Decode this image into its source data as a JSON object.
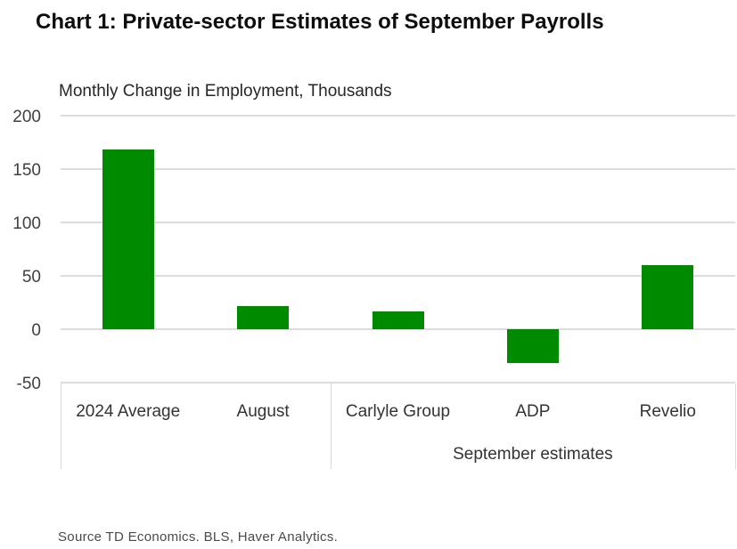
{
  "header": {
    "title": "Chart 1: Private-sector Estimates of September Payrolls",
    "axis_title": "Monthly Change in Employment, Thousands"
  },
  "chart_data": {
    "type": "bar",
    "title": "Chart 1: Private-sector Estimates of September Payrolls",
    "ylabel": "Monthly Change in Employment, Thousands",
    "xlabel": "",
    "categories": [
      "2024 Average",
      "August",
      "Carlyle Group",
      "ADP",
      "Revelio"
    ],
    "values": [
      168,
      22,
      17,
      -32,
      60
    ],
    "ylim": [
      -50,
      200
    ],
    "yticks": [
      200,
      150,
      100,
      50,
      0,
      -50
    ],
    "grid": true,
    "legend_position": "none",
    "group_labels": [
      {
        "label": "September estimates",
        "start_index": 2,
        "end_index": 4
      }
    ]
  },
  "colors": {
    "bar": "#008A00",
    "gridline": "#DCDCDC",
    "divider": "#D9D9D9",
    "text": "#333333"
  },
  "footer": {
    "source": "Source TD Economics. BLS, Haver Analytics."
  }
}
